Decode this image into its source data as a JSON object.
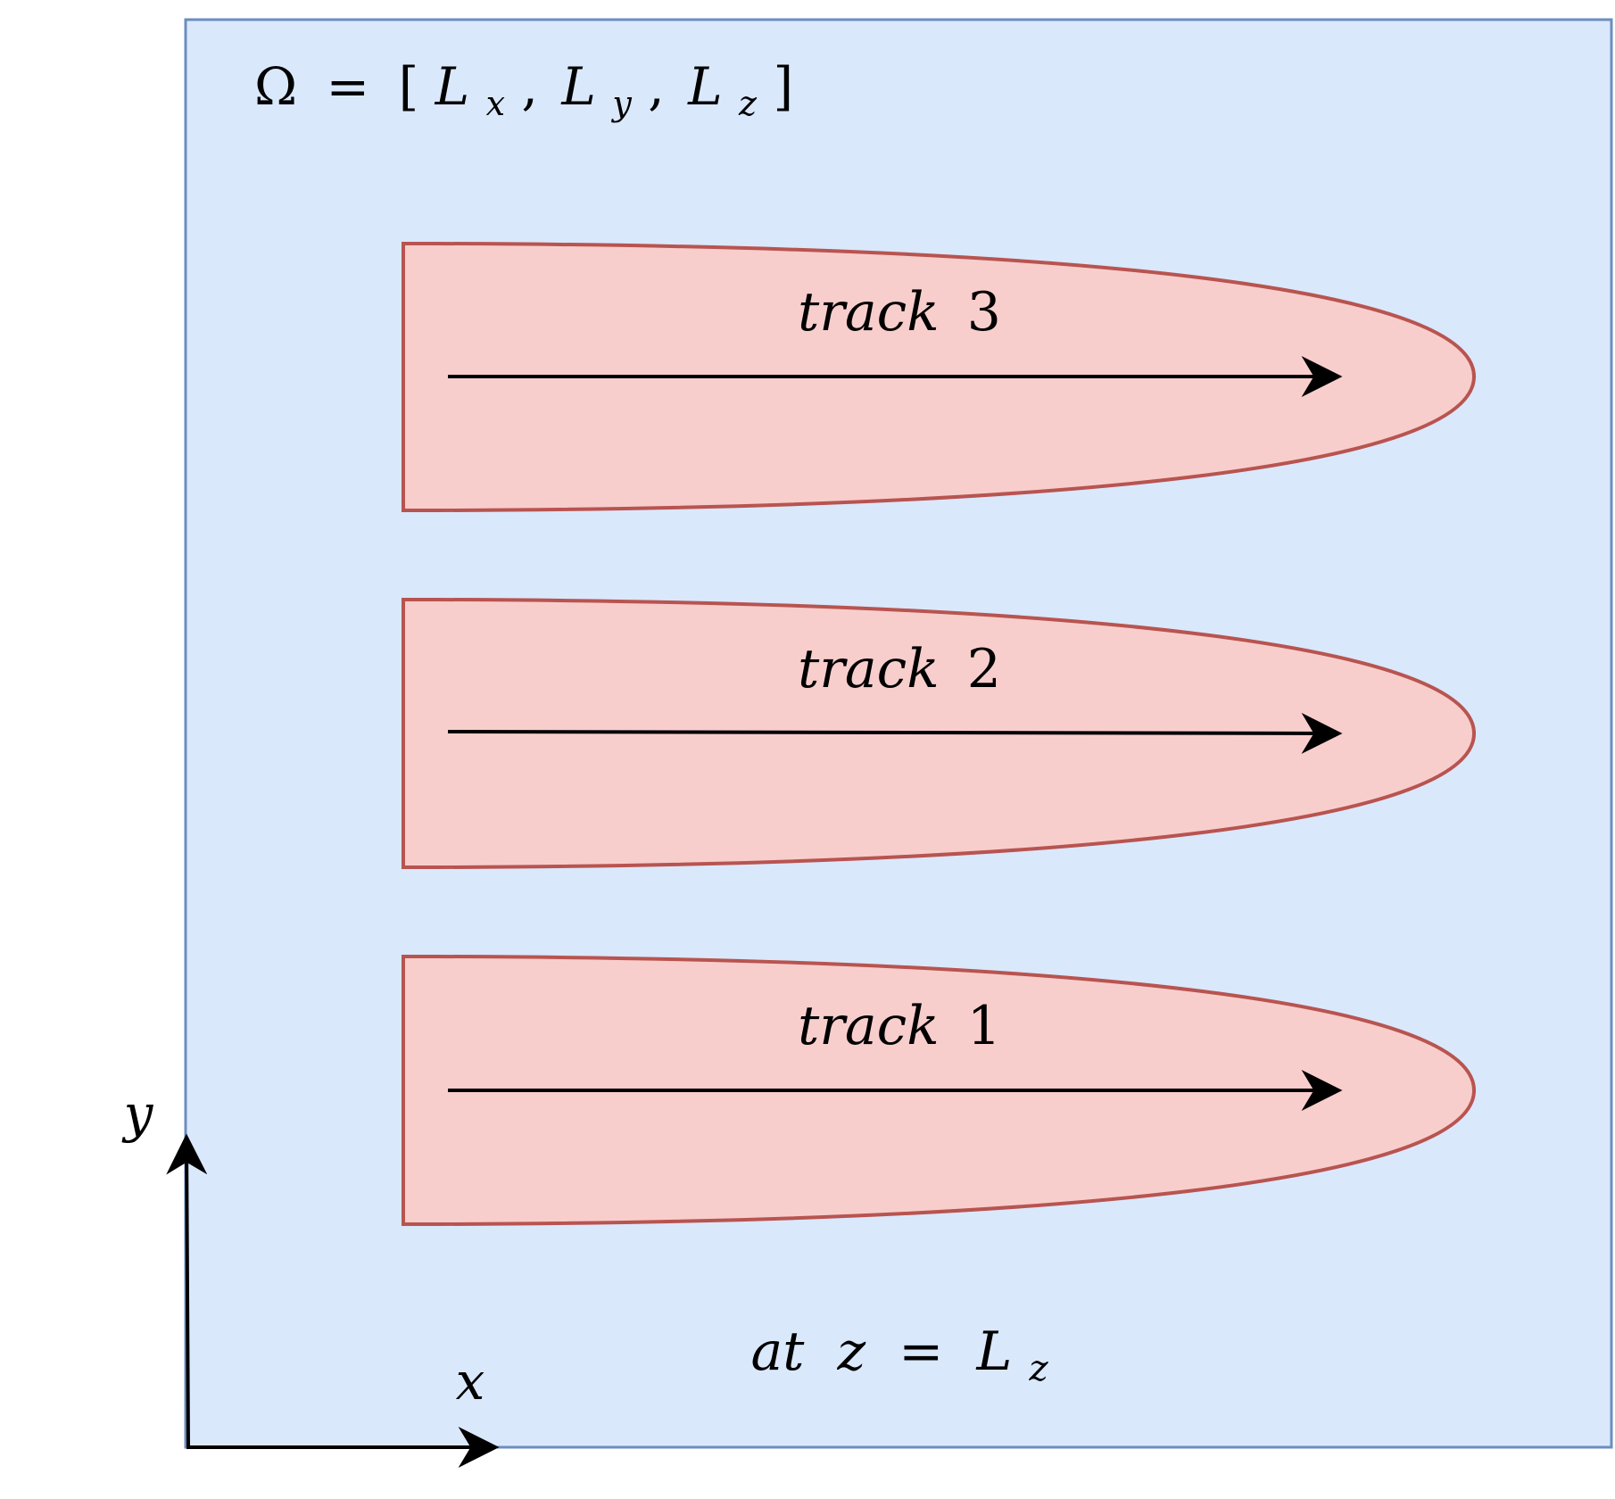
{
  "domain_label": {
    "omega": "Ω",
    "equals": "=",
    "open_bracket": "[",
    "close_bracket": "]",
    "comma": ",",
    "L": "L",
    "sub_x": "x",
    "sub_y": "y",
    "sub_z": "z"
  },
  "tracks": [
    {
      "label_italic": "track",
      "number": "3"
    },
    {
      "label_italic": "track",
      "number": "2"
    },
    {
      "label_italic": "track",
      "number": "1"
    }
  ],
  "axes": {
    "x_label": "x",
    "y_label": "y"
  },
  "slice_label": {
    "at": "at",
    "z": "z",
    "equals": "=",
    "L": "L",
    "sub_z": "z"
  },
  "colors": {
    "domain_fill": "#dae8fc",
    "domain_stroke": "#6c8ebf",
    "track_fill": "#f8cecc",
    "track_stroke": "#b85450",
    "arrow": "#000000"
  }
}
